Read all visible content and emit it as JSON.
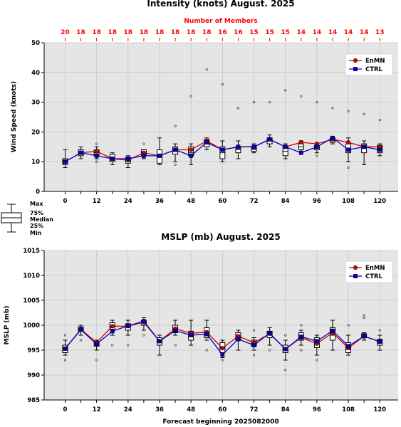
{
  "chart_data": [
    {
      "type": "box",
      "title": "Intensity (knots) August. 2025",
      "ylabel": "Wind Speed (knots)",
      "xlabel": "",
      "ylim": [
        0,
        50
      ],
      "yticks": [
        0,
        10,
        20,
        30,
        40,
        50
      ],
      "xticks": [
        0,
        12,
        24,
        36,
        48,
        60,
        72,
        84,
        96,
        108,
        120
      ],
      "grid": true,
      "legend_position": "top-right",
      "members_label": "Number of Members",
      "x": [
        0,
        6,
        12,
        18,
        24,
        30,
        36,
        42,
        48,
        54,
        60,
        66,
        72,
        78,
        84,
        90,
        96,
        102,
        108,
        114,
        120
      ],
      "members": [
        20,
        18,
        18,
        18,
        18,
        18,
        18,
        18,
        18,
        18,
        16,
        16,
        15,
        15,
        15,
        14,
        14,
        14,
        14,
        14,
        13
      ],
      "boxes": [
        {
          "min": 8,
          "q1": 9,
          "median": 10,
          "q3": 11,
          "max": 14,
          "outliers": []
        },
        {
          "min": 11,
          "q1": 12,
          "median": 13,
          "q3": 14,
          "max": 15,
          "outliers": []
        },
        {
          "min": 11,
          "q1": 12,
          "median": 13,
          "q3": 14,
          "max": 15,
          "outliers": [
            16,
            10
          ]
        },
        {
          "min": 9,
          "q1": 10,
          "median": 11,
          "q3": 12.5,
          "max": 13,
          "outliers": []
        },
        {
          "min": 8,
          "q1": 9.5,
          "median": 10.5,
          "q3": 11.5,
          "max": 12,
          "outliers": []
        },
        {
          "min": 11,
          "q1": 12,
          "median": 13,
          "q3": 14,
          "max": 14,
          "outliers": [
            16
          ]
        },
        {
          "min": 9,
          "q1": 9.5,
          "median": 11.5,
          "q3": 14,
          "max": 18,
          "outliers": []
        },
        {
          "min": 10,
          "q1": 12.5,
          "median": 14,
          "q3": 15,
          "max": 16,
          "outliers": [
            22,
            9
          ]
        },
        {
          "min": 9,
          "q1": 12,
          "median": 13,
          "q3": 15,
          "max": 16,
          "outliers": [
            32
          ]
        },
        {
          "min": 14,
          "q1": 15,
          "median": 16,
          "q3": 17.5,
          "max": 18,
          "outliers": [
            41
          ]
        },
        {
          "min": 10,
          "q1": 11,
          "median": 13,
          "q3": 15,
          "max": 17,
          "outliers": [
            36
          ]
        },
        {
          "min": 11,
          "q1": 13,
          "median": 14,
          "q3": 15,
          "max": 17,
          "outliers": [
            28
          ]
        },
        {
          "min": 13,
          "q1": 13.5,
          "median": 14,
          "q3": 15,
          "max": 16,
          "outliers": [
            30
          ]
        },
        {
          "min": 15,
          "q1": 16,
          "median": 17,
          "q3": 18,
          "max": 19,
          "outliers": [
            30
          ]
        },
        {
          "min": 11,
          "q1": 12,
          "median": 13.5,
          "q3": 15,
          "max": 16,
          "outliers": [
            34
          ]
        },
        {
          "min": 13,
          "q1": 14,
          "median": 15,
          "q3": 16,
          "max": 17,
          "outliers": [
            32
          ]
        },
        {
          "min": 13,
          "q1": 14,
          "median": 14.5,
          "q3": 15.5,
          "max": 16,
          "outliers": [
            30,
            12
          ]
        },
        {
          "min": 16,
          "q1": 16.5,
          "median": 17,
          "q3": 18,
          "max": 18.5,
          "outliers": [
            28
          ]
        },
        {
          "min": 10,
          "q1": 13,
          "median": 14.5,
          "q3": 16,
          "max": 18,
          "outliers": [
            27,
            8
          ]
        },
        {
          "min": 9,
          "q1": 13,
          "median": 14.5,
          "q3": 16,
          "max": 17,
          "outliers": [
            26
          ]
        },
        {
          "min": 12,
          "q1": 13,
          "median": 14.5,
          "q3": 15.5,
          "max": 16,
          "outliers": [
            24
          ]
        }
      ],
      "series": [
        {
          "name": "EnMN",
          "color": "#dd0000",
          "marker": "circle",
          "values": [
            10,
            13,
            13.5,
            11,
            10.5,
            13,
            12,
            14,
            14,
            17,
            14,
            15,
            15,
            17.5,
            15,
            16.5,
            16,
            17.5,
            16.5,
            15,
            15
          ]
        },
        {
          "name": "CTRL",
          "color": "#0000cc",
          "marker": "square",
          "values": [
            10,
            13,
            12,
            11,
            11,
            12,
            12,
            14,
            12,
            16.5,
            14,
            15,
            15,
            17.5,
            15,
            13,
            15,
            18,
            14,
            15,
            14
          ]
        }
      ]
    },
    {
      "type": "box",
      "title": "MSLP (mb) August. 2025",
      "ylabel": "MSLP (mb)",
      "xlabel": "Forecast beginning 2025082000",
      "ylim": [
        985,
        1015
      ],
      "yticks": [
        985,
        990,
        995,
        1000,
        1005,
        1010,
        1015
      ],
      "xticks": [
        0,
        12,
        24,
        36,
        48,
        60,
        72,
        84,
        96,
        108,
        120
      ],
      "grid": true,
      "legend_position": "top-right",
      "x": [
        0,
        6,
        12,
        18,
        24,
        30,
        36,
        42,
        48,
        54,
        60,
        66,
        72,
        78,
        84,
        90,
        96,
        102,
        108,
        114,
        120
      ],
      "boxes": [
        {
          "min": 994,
          "q1": 994.5,
          "median": 995,
          "q3": 996,
          "max": 997,
          "outliers": [
            998,
            993
          ]
        },
        {
          "min": 998,
          "q1": 998.8,
          "median": 999.2,
          "q3": 999.7,
          "max": 1000,
          "outliers": [
            997
          ]
        },
        {
          "min": 995,
          "q1": 995.8,
          "median": 996.2,
          "q3": 996.7,
          "max": 997,
          "outliers": [
            993
          ]
        },
        {
          "min": 998,
          "q1": 999.2,
          "median": 999.7,
          "q3": 1000.5,
          "max": 1001,
          "outliers": [
            996
          ]
        },
        {
          "min": 998,
          "q1": 999,
          "median": 999.8,
          "q3": 1000.3,
          "max": 1001,
          "outliers": [
            996
          ]
        },
        {
          "min": 999,
          "q1": 1000,
          "median": 1000.5,
          "q3": 1001,
          "max": 1001.5,
          "outliers": [
            998
          ]
        },
        {
          "min": 994,
          "q1": 996,
          "median": 996.8,
          "q3": 997.5,
          "max": 998,
          "outliers": []
        },
        {
          "min": 998,
          "q1": 998.5,
          "median": 999,
          "q3": 1000,
          "max": 1001,
          "outliers": [
            996
          ]
        },
        {
          "min": 996,
          "q1": 997,
          "median": 998,
          "q3": 998.8,
          "max": 1001,
          "outliers": []
        },
        {
          "min": 997,
          "q1": 997.5,
          "median": 998.5,
          "q3": 999.5,
          "max": 1001,
          "outliers": [
            995
          ]
        },
        {
          "min": 993.5,
          "q1": 994.5,
          "median": 995.5,
          "q3": 996.5,
          "max": 997,
          "outliers": [
            993
          ]
        },
        {
          "min": 995,
          "q1": 997,
          "median": 997.8,
          "q3": 998.5,
          "max": 999,
          "outliers": []
        },
        {
          "min": 995,
          "q1": 995.8,
          "median": 996.5,
          "q3": 997,
          "max": 997.5,
          "outliers": [
            999,
            994
          ]
        },
        {
          "min": 996,
          "q1": 997.5,
          "median": 998.2,
          "q3": 998.8,
          "max": 999.5,
          "outliers": [
            995
          ]
        },
        {
          "min": 993,
          "q1": 994.5,
          "median": 995.2,
          "q3": 996,
          "max": 997,
          "outliers": [
            998,
            991
          ]
        },
        {
          "min": 996,
          "q1": 997,
          "median": 997.5,
          "q3": 998.5,
          "max": 999,
          "outliers": [
            1000,
            995
          ]
        },
        {
          "min": 994,
          "q1": 995.5,
          "median": 996.5,
          "q3": 997.5,
          "max": 998,
          "outliers": [
            993
          ]
        },
        {
          "min": 995,
          "q1": 997,
          "median": 998,
          "q3": 999.5,
          "max": 1001,
          "outliers": []
        },
        {
          "min": 994,
          "q1": 994.5,
          "median": 995.2,
          "q3": 996.5,
          "max": 998,
          "outliers": [
            1000
          ]
        },
        {
          "min": 997,
          "q1": 997.5,
          "median": 997.8,
          "q3": 998.3,
          "max": 998.5,
          "outliers": [
            1002,
            1001.5
          ]
        },
        {
          "min": 995,
          "q1": 996,
          "median": 996.5,
          "q3": 997.2,
          "max": 998,
          "outliers": [
            999
          ]
        }
      ],
      "series": [
        {
          "name": "EnMN",
          "color": "#dd0000",
          "marker": "circle",
          "values": [
            995.3,
            999.2,
            996.5,
            999.8,
            999.8,
            1000.6,
            996.8,
            999.3,
            998.4,
            998.6,
            995.4,
            997.8,
            996.5,
            998.3,
            995.2,
            997.5,
            996.3,
            998.5,
            995.4,
            997.8,
            996.7
          ]
        },
        {
          "name": "CTRL",
          "color": "#0000cc",
          "marker": "square",
          "values": [
            995.3,
            999.1,
            996.2,
            998.8,
            999.9,
            1000.8,
            996.8,
            998.9,
            998.0,
            998.2,
            994.1,
            997.2,
            996.0,
            998.4,
            995.2,
            997.7,
            996.8,
            998.9,
            995.8,
            997.8,
            996.7
          ]
        }
      ]
    }
  ],
  "legend_key": {
    "labels": [
      "Max",
      "75%",
      "Median",
      "25%",
      "Min"
    ]
  }
}
